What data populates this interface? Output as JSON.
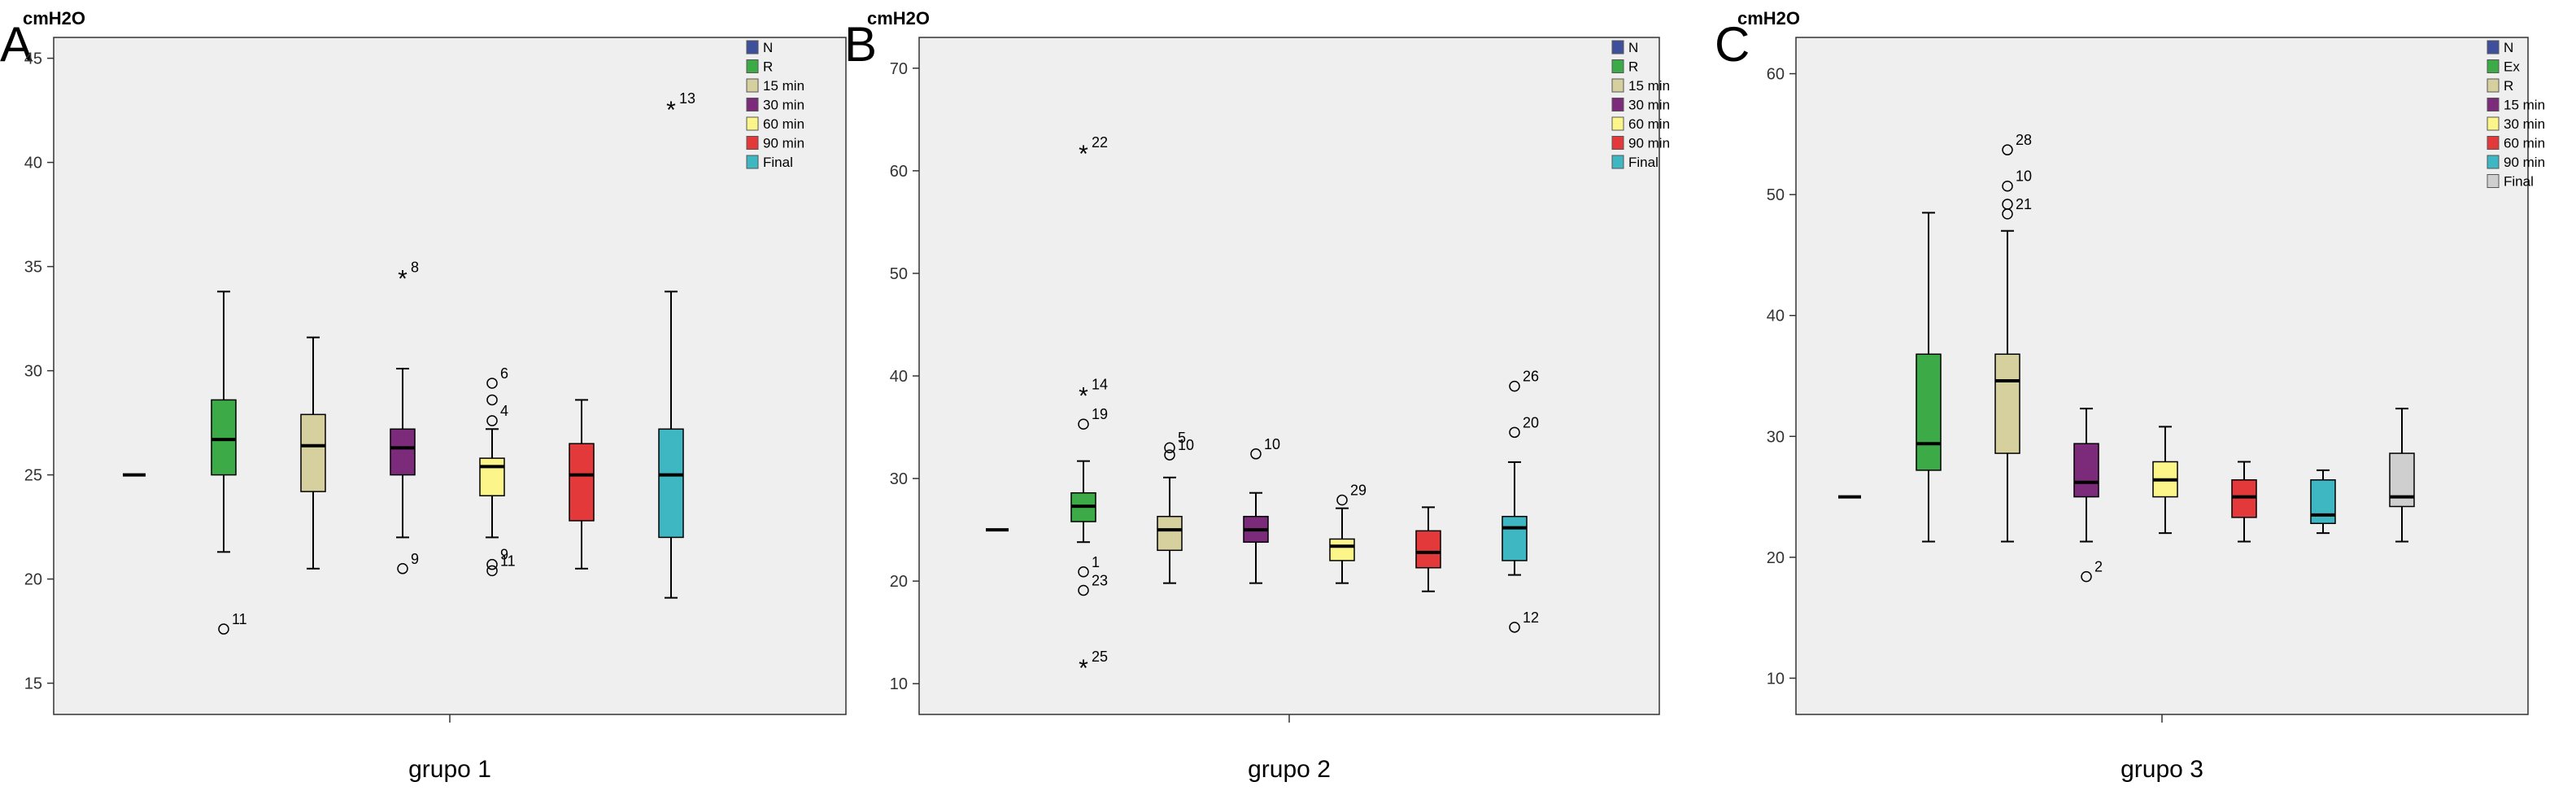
{
  "chart_data": [
    {
      "type": "boxplot",
      "panel_label": "A",
      "ylabel": "cmH2O",
      "xlabel": "grupo 1",
      "ylim": [
        13.5,
        46
      ],
      "yticks": [
        15,
        20,
        25,
        30,
        35,
        40,
        45
      ],
      "grid": false,
      "legend_position": "top-right",
      "series": [
        {
          "name": "N",
          "color": "#3e4f9c",
          "box": {
            "min": 25,
            "q1": 25,
            "median": 25,
            "q3": 25,
            "max": 25
          },
          "outliers": []
        },
        {
          "name": "R",
          "color": "#3daa48",
          "box": {
            "min": 21.3,
            "q1": 25.0,
            "median": 26.7,
            "q3": 28.6,
            "max": 33.8
          },
          "outliers": [
            {
              "value": 17.6,
              "label": "11",
              "marker": "circle"
            }
          ]
        },
        {
          "name": "15 min",
          "color": "#d6cf9e",
          "box": {
            "min": 20.5,
            "q1": 24.2,
            "median": 26.4,
            "q3": 27.9,
            "max": 31.6
          },
          "outliers": []
        },
        {
          "name": "30 min",
          "color": "#7c2a7a",
          "box": {
            "min": 22.0,
            "q1": 25.0,
            "median": 26.3,
            "q3": 27.2,
            "max": 30.1
          },
          "outliers": [
            {
              "value": 34.5,
              "label": "8",
              "marker": "star"
            },
            {
              "value": 20.5,
              "label": "9",
              "marker": "circle"
            }
          ]
        },
        {
          "name": "60 min",
          "color": "#fbf58a",
          "box": {
            "min": 22.0,
            "q1": 24.0,
            "median": 25.4,
            "q3": 25.8,
            "max": 27.2
          },
          "outliers": [
            {
              "value": 29.4,
              "label": "6",
              "marker": "circle"
            },
            {
              "value": 28.6,
              "label": "",
              "marker": "circle"
            },
            {
              "value": 27.6,
              "label": "4",
              "marker": "circle"
            },
            {
              "value": 20.7,
              "label": "9",
              "marker": "circle"
            },
            {
              "value": 20.4,
              "label": "11",
              "marker": "circle"
            }
          ]
        },
        {
          "name": "90 min",
          "color": "#e3393a",
          "box": {
            "min": 20.5,
            "q1": 22.8,
            "median": 25.0,
            "q3": 26.5,
            "max": 28.6
          },
          "outliers": []
        },
        {
          "name": "Final",
          "color": "#3fb7c3",
          "box": {
            "min": 19.1,
            "q1": 22.0,
            "median": 25.0,
            "q3": 27.2,
            "max": 33.8
          },
          "outliers": [
            {
              "value": 42.6,
              "label": "13",
              "marker": "star"
            }
          ]
        }
      ]
    },
    {
      "type": "boxplot",
      "panel_label": "B",
      "ylabel": "cmH2O",
      "xlabel": "grupo 2",
      "ylim": [
        7,
        73
      ],
      "yticks": [
        10,
        20,
        30,
        40,
        50,
        60,
        70
      ],
      "grid": false,
      "legend_position": "top-right",
      "series": [
        {
          "name": "N",
          "color": "#3e4f9c",
          "box": {
            "min": 25,
            "q1": 25,
            "median": 25,
            "q3": 25,
            "max": 25
          },
          "outliers": []
        },
        {
          "name": "R",
          "color": "#3daa48",
          "box": {
            "min": 23.8,
            "q1": 25.8,
            "median": 27.3,
            "q3": 28.6,
            "max": 31.7
          },
          "outliers": [
            {
              "value": 61.8,
              "label": "22",
              "marker": "star"
            },
            {
              "value": 38.2,
              "label": "14",
              "marker": "star"
            },
            {
              "value": 35.3,
              "label": "19",
              "marker": "circle"
            },
            {
              "value": 20.9,
              "label": "1",
              "marker": "circle"
            },
            {
              "value": 19.1,
              "label": "23",
              "marker": "circle"
            },
            {
              "value": 11.7,
              "label": "25",
              "marker": "star"
            }
          ]
        },
        {
          "name": "15 min",
          "color": "#d6cf9e",
          "box": {
            "min": 19.8,
            "q1": 23.0,
            "median": 25.0,
            "q3": 26.3,
            "max": 30.1
          },
          "outliers": [
            {
              "value": 33.0,
              "label": "5",
              "marker": "circle"
            },
            {
              "value": 32.3,
              "label": "10",
              "marker": "circle"
            }
          ]
        },
        {
          "name": "30 min",
          "color": "#7c2a7a",
          "box": {
            "min": 19.8,
            "q1": 23.8,
            "median": 25.0,
            "q3": 26.3,
            "max": 28.6
          },
          "outliers": [
            {
              "value": 32.4,
              "label": "10",
              "marker": "circle"
            }
          ]
        },
        {
          "name": "60 min",
          "color": "#fbf58a",
          "box": {
            "min": 19.8,
            "q1": 22.0,
            "median": 23.4,
            "q3": 24.1,
            "max": 27.1
          },
          "outliers": [
            {
              "value": 27.9,
              "label": "29",
              "marker": "circle"
            }
          ]
        },
        {
          "name": "90 min",
          "color": "#e3393a",
          "box": {
            "min": 19.0,
            "q1": 21.3,
            "median": 22.8,
            "q3": 24.9,
            "max": 27.2
          },
          "outliers": []
        },
        {
          "name": "Final",
          "color": "#3fb7c3",
          "box": {
            "min": 20.6,
            "q1": 22.0,
            "median": 25.2,
            "q3": 26.3,
            "max": 31.6
          },
          "outliers": [
            {
              "value": 39.0,
              "label": "26",
              "marker": "circle"
            },
            {
              "value": 34.5,
              "label": "20",
              "marker": "circle"
            },
            {
              "value": 15.5,
              "label": "12",
              "marker": "circle"
            }
          ]
        }
      ]
    },
    {
      "type": "boxplot",
      "panel_label": "C",
      "ylabel": "cmH2O",
      "xlabel": "grupo 3",
      "ylim": [
        7,
        63
      ],
      "yticks": [
        10,
        20,
        30,
        40,
        50,
        60
      ],
      "grid": false,
      "legend_position": "top-right",
      "series": [
        {
          "name": "N",
          "color": "#3e4f9c",
          "box": {
            "min": 25,
            "q1": 25,
            "median": 25,
            "q3": 25,
            "max": 25
          },
          "outliers": []
        },
        {
          "name": "Ex",
          "color": "#3daa48",
          "box": {
            "min": 21.3,
            "q1": 27.2,
            "median": 29.4,
            "q3": 36.8,
            "max": 48.5
          },
          "outliers": []
        },
        {
          "name": "R",
          "color": "#d6cf9e",
          "box": {
            "min": 21.3,
            "q1": 28.6,
            "median": 34.6,
            "q3": 36.8,
            "max": 47.0
          },
          "outliers": [
            {
              "value": 53.7,
              "label": "28",
              "marker": "circle"
            },
            {
              "value": 50.7,
              "label": "10",
              "marker": "circle"
            },
            {
              "value": 49.2,
              "label": "",
              "marker": "circle"
            },
            {
              "value": 48.4,
              "label": "21",
              "marker": "circle"
            }
          ]
        },
        {
          "name": "15 min",
          "color": "#7c2a7a",
          "box": {
            "min": 21.3,
            "q1": 25.0,
            "median": 26.2,
            "q3": 29.4,
            "max": 32.3
          },
          "outliers": [
            {
              "value": 18.4,
              "label": "2",
              "marker": "circle"
            }
          ]
        },
        {
          "name": "30 min",
          "color": "#fbf58a",
          "box": {
            "min": 22.0,
            "q1": 25.0,
            "median": 26.4,
            "q3": 27.9,
            "max": 30.8
          },
          "outliers": []
        },
        {
          "name": "60 min",
          "color": "#e3393a",
          "box": {
            "min": 21.3,
            "q1": 23.3,
            "median": 25.0,
            "q3": 26.4,
            "max": 27.9
          },
          "outliers": []
        },
        {
          "name": "90 min",
          "color": "#3fb7c3",
          "box": {
            "min": 22.0,
            "q1": 22.8,
            "median": 23.5,
            "q3": 26.4,
            "max": 27.2
          },
          "outliers": []
        },
        {
          "name": "Final",
          "color": "#cfcfcf",
          "box": {
            "min": 21.3,
            "q1": 24.2,
            "median": 25.0,
            "q3": 28.6,
            "max": 32.3
          },
          "outliers": []
        }
      ]
    }
  ]
}
